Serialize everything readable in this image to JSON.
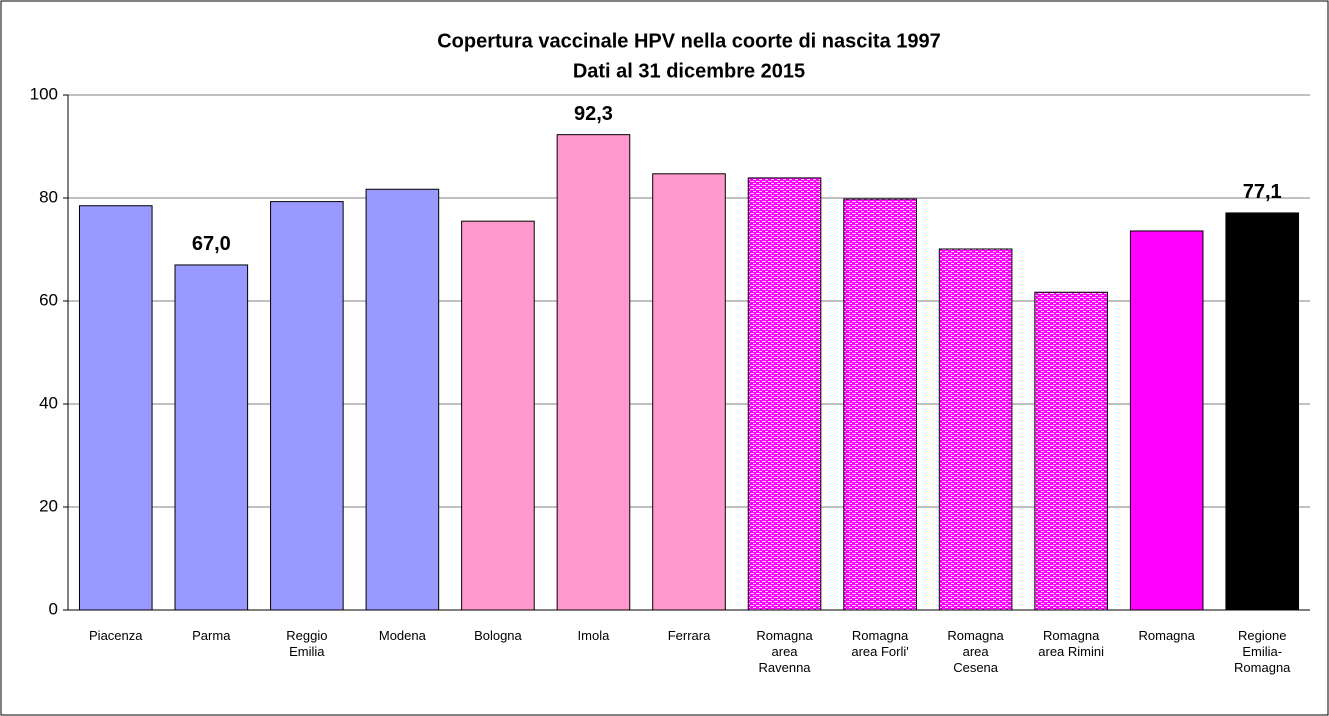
{
  "chart_data": {
    "type": "bar",
    "title": "Copertura vaccinale HPV nella coorte di nascita 1997",
    "subtitle": "Dati al 31 dicembre 2015",
    "categories": [
      "Piacenza",
      "Parma",
      "Reggio Emilia",
      "Modena",
      "Bologna",
      "Imola",
      "Ferrara",
      "Romagna area Ravenna",
      "Romagna area Forli'",
      "Romagna area Cesena",
      "Romagna area Rimini",
      "Romagna",
      "Regione Emilia-Romagna"
    ],
    "values": [
      78.5,
      67.0,
      79.3,
      81.7,
      75.5,
      92.3,
      84.7,
      83.9,
      79.8,
      70.1,
      61.7,
      73.6,
      77.1
    ],
    "value_labels": [
      null,
      "67,0",
      null,
      null,
      null,
      "92,3",
      null,
      null,
      null,
      null,
      null,
      null,
      "77,1"
    ],
    "colors": [
      "#9999ff",
      "#9999ff",
      "#9999ff",
      "#9999ff",
      "#ff99cc",
      "#ff99cc",
      "#ff99cc",
      "#ff00ff",
      "#ff00ff",
      "#ff00ff",
      "#ff00ff",
      "#ff00ff",
      "#000000"
    ],
    "patterned": [
      false,
      false,
      false,
      false,
      false,
      false,
      false,
      true,
      true,
      true,
      true,
      false,
      false
    ],
    "ylim": [
      0,
      100
    ],
    "yticks": [
      0,
      20,
      40,
      60,
      80,
      100
    ],
    "grid": true
  }
}
